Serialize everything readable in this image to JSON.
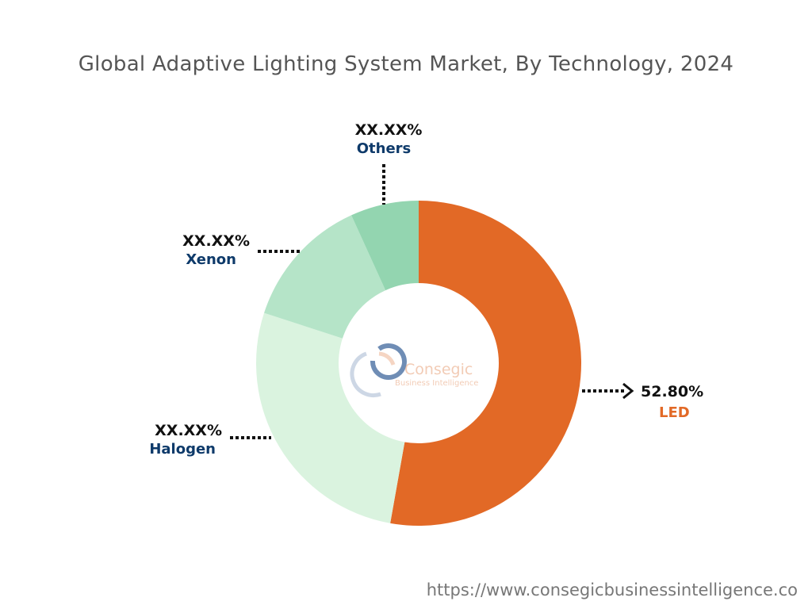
{
  "chart_data": {
    "type": "pie",
    "title": "Global Adaptive Lighting System Market, By Technology, 2024",
    "donut": true,
    "slices": [
      {
        "name": "LED",
        "label": "52.80%",
        "value": 52.8,
        "color": "#E26926",
        "name_color": "#E26926"
      },
      {
        "name": "Halogen",
        "label": "XX.XX%",
        "value": 27.2,
        "color": "#DAF3DF",
        "name_color": "#0E3A6A"
      },
      {
        "name": "Xenon",
        "label": "XX.XX%",
        "value": 13.2,
        "color": "#B5E4C8",
        "name_color": "#0E3A6A"
      },
      {
        "name": "Others",
        "label": "XX.XX%",
        "value": 6.8,
        "color": "#93D5B0",
        "name_color": "#0E3A6A"
      }
    ],
    "center_logo": {
      "brand": "Consegic",
      "tagline": "Business Intelligence"
    }
  },
  "footer": {
    "url": "https://www.consegicbusinessintelligence.co"
  }
}
